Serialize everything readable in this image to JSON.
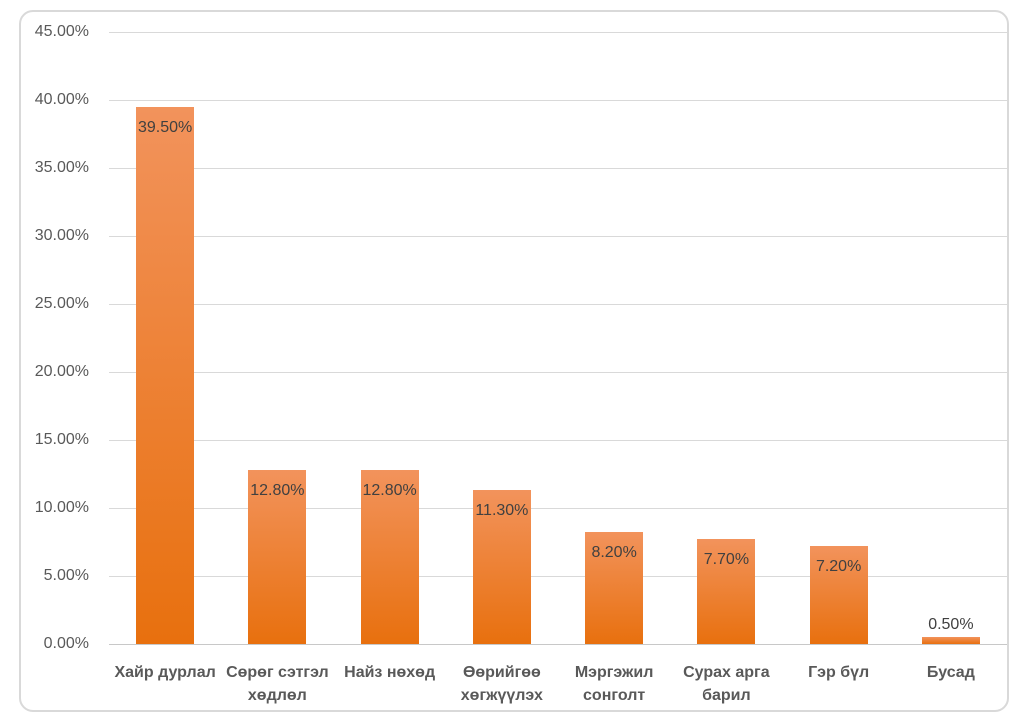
{
  "chart_data": {
    "type": "bar",
    "categories": [
      "Хайр дурлал",
      "Сөрөг сэтгэл хөдлөл",
      "Найз нөхөд",
      "Өөрийгөө хөгжүүлэх",
      "Мэргэжил сонголт",
      "Сурах арга барил",
      "Гэр бүл",
      "Бусад"
    ],
    "category_lines": [
      [
        "Хайр дурлал"
      ],
      [
        "Сөрөг сэтгэл",
        "хөдлөл"
      ],
      [
        "Найз нөхөд"
      ],
      [
        "Өөрийгөө",
        "хөгжүүлэх"
      ],
      [
        "Мэргэжил",
        "сонголт"
      ],
      [
        "Сурах арга",
        "барил"
      ],
      [
        "Гэр бүл"
      ],
      [
        "Бусад"
      ]
    ],
    "values": [
      39.5,
      12.8,
      12.8,
      11.3,
      8.2,
      7.7,
      7.2,
      0.5
    ],
    "data_labels": [
      "39.50%",
      "12.80%",
      "12.80%",
      "11.30%",
      "8.20%",
      "7.70%",
      "7.20%",
      "0.50%"
    ],
    "y_axis": {
      "min": 0,
      "max": 45,
      "step": 5,
      "tick_labels": [
        "0.00%",
        "5.00%",
        "10.00%",
        "15.00%",
        "20.00%",
        "25.00%",
        "30.00%",
        "35.00%",
        "40.00%",
        "45.00%"
      ]
    },
    "grid": true,
    "legend_position": "none",
    "colors": {
      "bar_gradient_top": "#F2935C",
      "bar_gradient_bottom": "#E8700E",
      "gridline": "#D9D9D9",
      "axis_line": "#C8C8C8",
      "data_label": "#404040",
      "axis_label": "#595959",
      "category_label": "#595959",
      "chart_border": "#D9D9D9",
      "background": "#FFFFFF"
    }
  }
}
